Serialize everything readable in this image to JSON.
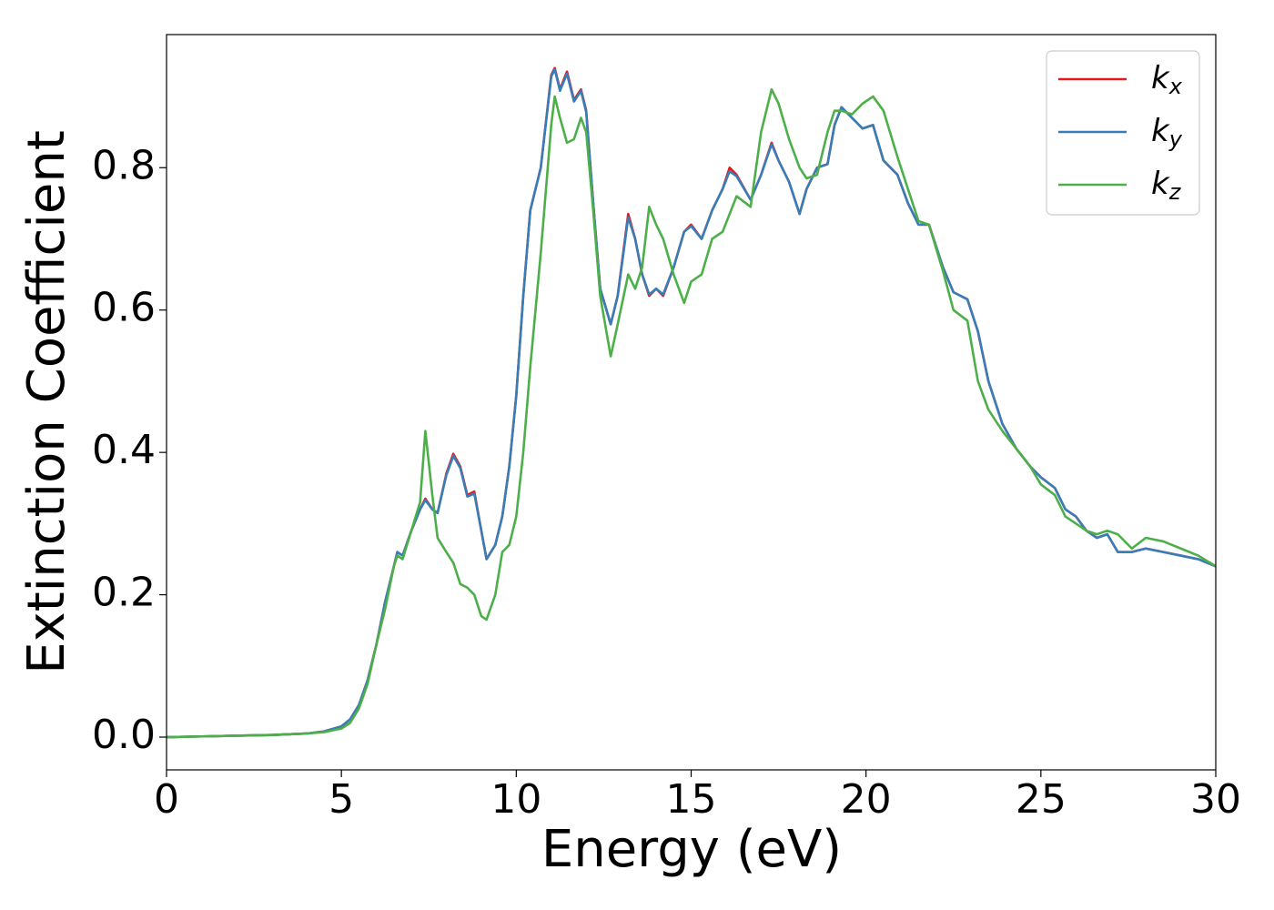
{
  "chart_data": {
    "type": "line",
    "xlabel": "Energy (eV)",
    "ylabel": "Extinction Coefficient",
    "xlim": [
      0,
      30
    ],
    "ylim": [
      -0.046,
      0.987
    ],
    "xticks": [
      0,
      5,
      10,
      15,
      20,
      25,
      30
    ],
    "yticks": [
      {
        "value": 0,
        "label": "0.0"
      },
      {
        "value": 0.2,
        "label": "0.2"
      },
      {
        "value": 0.4,
        "label": "0.4"
      },
      {
        "value": 0.6,
        "label": "0.6"
      },
      {
        "value": 0.8,
        "label": "0.8"
      }
    ],
    "legend": "upper right",
    "x": [
      0,
      1,
      2,
      3,
      4,
      4.5,
      5,
      5.25,
      5.5,
      5.75,
      6,
      6.25,
      6.5,
      6.6,
      6.75,
      7,
      7.25,
      7.4,
      7.6,
      7.75,
      8,
      8.2,
      8.4,
      8.6,
      8.8,
      9,
      9.15,
      9.4,
      9.6,
      9.8,
      10,
      10.2,
      10.4,
      10.7,
      11,
      11.1,
      11.25,
      11.45,
      11.65,
      11.85,
      12,
      12.2,
      12.4,
      12.7,
      12.9,
      13.2,
      13.4,
      13.6,
      13.8,
      14,
      14.2,
      14.5,
      14.8,
      15,
      15.3,
      15.6,
      15.9,
      16.1,
      16.3,
      16.7,
      17,
      17.3,
      17.5,
      17.8,
      18.1,
      18.3,
      18.6,
      18.9,
      19.1,
      19.3,
      19.6,
      19.9,
      20.2,
      20.5,
      20.9,
      21.2,
      21.5,
      21.8,
      22.2,
      22.5,
      22.9,
      23.2,
      23.5,
      23.9,
      24.3,
      24.7,
      25,
      25.4,
      25.7,
      26,
      26.3,
      26.6,
      26.9,
      27.2,
      27.6,
      28,
      28.5,
      29,
      29.5,
      30
    ],
    "series": [
      {
        "name": "kx",
        "color": "#e41a1c",
        "values": [
          0,
          0.001,
          0.002,
          0.003,
          0.005,
          0.008,
          0.015,
          0.025,
          0.045,
          0.08,
          0.13,
          0.19,
          0.24,
          0.26,
          0.255,
          0.29,
          0.32,
          0.335,
          0.32,
          0.315,
          0.37,
          0.398,
          0.38,
          0.34,
          0.345,
          0.29,
          0.25,
          0.27,
          0.31,
          0.38,
          0.48,
          0.62,
          0.74,
          0.8,
          0.93,
          0.94,
          0.91,
          0.935,
          0.895,
          0.91,
          0.88,
          0.75,
          0.63,
          0.58,
          0.62,
          0.735,
          0.7,
          0.65,
          0.62,
          0.63,
          0.62,
          0.66,
          0.71,
          0.72,
          0.7,
          0.74,
          0.77,
          0.8,
          0.79,
          0.755,
          0.79,
          0.835,
          0.81,
          0.78,
          0.735,
          0.77,
          0.8,
          0.805,
          0.86,
          0.885,
          0.87,
          0.855,
          0.86,
          0.81,
          0.79,
          0.75,
          0.72,
          0.72,
          0.66,
          0.625,
          0.615,
          0.57,
          0.5,
          0.44,
          0.405,
          0.38,
          0.365,
          0.35,
          0.32,
          0.31,
          0.29,
          0.28,
          0.285,
          0.26,
          0.26,
          0.265,
          0.26,
          0.255,
          0.25,
          0.24
        ]
      },
      {
        "name": "ky",
        "color": "#377eb8",
        "values": [
          0,
          0.001,
          0.002,
          0.003,
          0.005,
          0.008,
          0.015,
          0.025,
          0.045,
          0.08,
          0.13,
          0.19,
          0.24,
          0.26,
          0.255,
          0.29,
          0.32,
          0.333,
          0.32,
          0.315,
          0.368,
          0.395,
          0.378,
          0.338,
          0.342,
          0.29,
          0.25,
          0.27,
          0.31,
          0.38,
          0.48,
          0.62,
          0.74,
          0.8,
          0.928,
          0.938,
          0.908,
          0.932,
          0.893,
          0.908,
          0.878,
          0.75,
          0.63,
          0.58,
          0.62,
          0.73,
          0.7,
          0.65,
          0.622,
          0.63,
          0.622,
          0.66,
          0.71,
          0.718,
          0.7,
          0.74,
          0.77,
          0.795,
          0.788,
          0.755,
          0.79,
          0.833,
          0.81,
          0.78,
          0.735,
          0.77,
          0.8,
          0.805,
          0.86,
          0.885,
          0.87,
          0.855,
          0.86,
          0.81,
          0.79,
          0.75,
          0.72,
          0.72,
          0.66,
          0.625,
          0.615,
          0.57,
          0.5,
          0.44,
          0.405,
          0.38,
          0.365,
          0.35,
          0.32,
          0.31,
          0.29,
          0.28,
          0.285,
          0.26,
          0.26,
          0.265,
          0.26,
          0.255,
          0.25,
          0.24
        ]
      },
      {
        "name": "kz",
        "color": "#4daf4a",
        "values": [
          0,
          0.001,
          0.002,
          0.003,
          0.005,
          0.007,
          0.012,
          0.02,
          0.04,
          0.075,
          0.13,
          0.18,
          0.24,
          0.255,
          0.25,
          0.29,
          0.33,
          0.43,
          0.34,
          0.28,
          0.26,
          0.245,
          0.215,
          0.21,
          0.2,
          0.17,
          0.165,
          0.2,
          0.26,
          0.27,
          0.31,
          0.4,
          0.52,
          0.68,
          0.86,
          0.9,
          0.87,
          0.835,
          0.84,
          0.87,
          0.85,
          0.74,
          0.62,
          0.535,
          0.58,
          0.65,
          0.63,
          0.66,
          0.745,
          0.72,
          0.7,
          0.65,
          0.61,
          0.64,
          0.65,
          0.7,
          0.71,
          0.735,
          0.76,
          0.745,
          0.85,
          0.91,
          0.89,
          0.84,
          0.8,
          0.785,
          0.79,
          0.85,
          0.88,
          0.88,
          0.875,
          0.89,
          0.9,
          0.88,
          0.815,
          0.77,
          0.725,
          0.72,
          0.655,
          0.6,
          0.585,
          0.5,
          0.46,
          0.43,
          0.405,
          0.38,
          0.355,
          0.34,
          0.31,
          0.3,
          0.29,
          0.285,
          0.29,
          0.285,
          0.265,
          0.28,
          0.275,
          0.265,
          0.255,
          0.24
        ]
      }
    ]
  }
}
